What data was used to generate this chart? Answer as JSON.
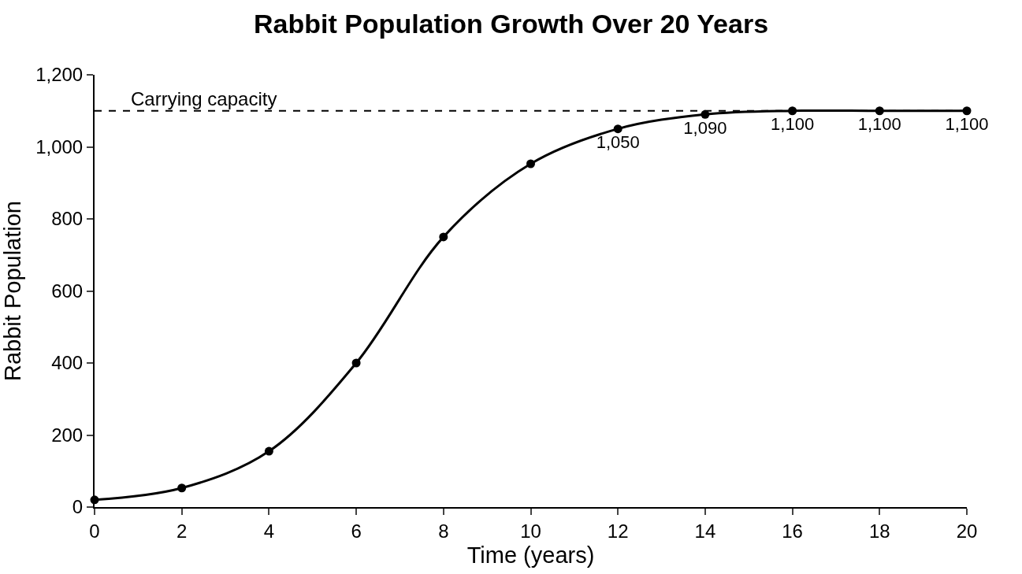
{
  "chart_data": {
    "type": "line",
    "title": "Rabbit Population Growth Over 20 Years",
    "xlabel": "Time (years)",
    "ylabel": "Rabbit Population",
    "x": [
      0,
      2,
      4,
      6,
      8,
      10,
      12,
      14,
      16,
      18,
      20
    ],
    "series": [
      {
        "color": "#000000",
        "values": [
          20,
          53,
          155,
          400,
          750,
          953,
          1050,
          1090,
          1100,
          1100,
          1100
        ],
        "value_labels": [
          null,
          null,
          null,
          null,
          null,
          null,
          "1,050",
          "1,090",
          "1,100",
          "1,100",
          "1,100"
        ]
      }
    ],
    "xlim": [
      0,
      20
    ],
    "xticks": [
      0,
      2,
      4,
      6,
      8,
      10,
      12,
      14,
      16,
      18,
      20
    ],
    "ylim": [
      0,
      1200
    ],
    "yticks": [
      0,
      {
        "value": 200,
        "label": "200"
      },
      {
        "value": 400,
        "label": "400"
      },
      {
        "value": 600,
        "label": "600"
      },
      {
        "value": 800,
        "label": "800"
      },
      {
        "value": 1000,
        "label": "1,000"
      },
      {
        "value": 1200,
        "label": "1,200"
      }
    ],
    "ref_lines": [
      {
        "axis": "y",
        "value": 1100,
        "label": "Carrying capacity",
        "color": "#000000",
        "line_style": "dashed"
      }
    ],
    "marker": "circle",
    "line_style": "solid"
  }
}
